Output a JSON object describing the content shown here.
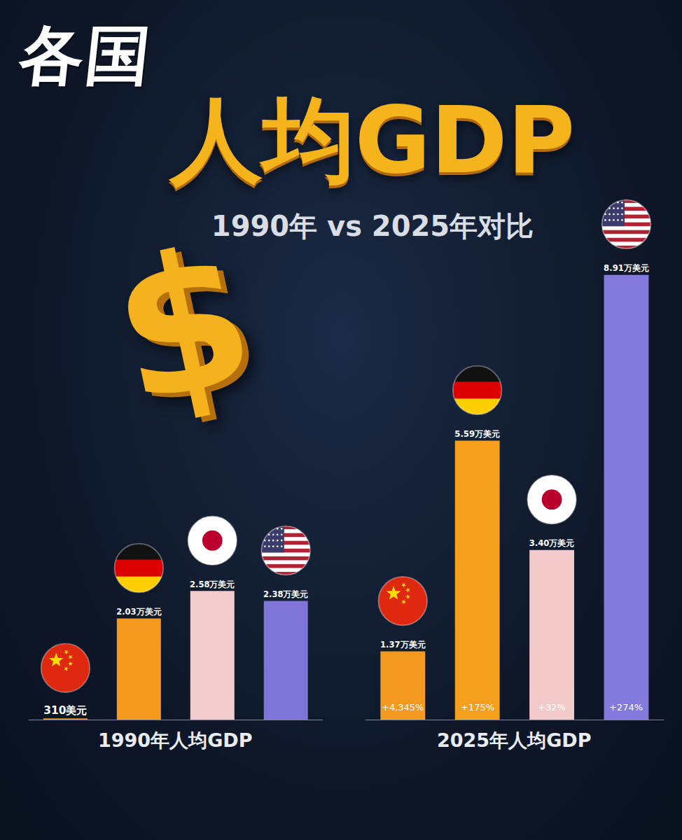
{
  "header": {
    "title_small": "各国",
    "title": "人均GDP",
    "subtitle": "1990年 vs 2025年对比",
    "icon": "$"
  },
  "chart_data": [
    {
      "type": "bar",
      "xlabel": "1990年人均GDP",
      "categories": [
        null,
        null,
        null,
        null
      ],
      "values": [
        310,
        20300,
        25800,
        23800
      ],
      "value_labels": [
        "310美元",
        "2.03万美元",
        "2.58万美元",
        "2.38万美元"
      ],
      "colors": [
        "#f28c1e",
        "#f39a1f",
        "#f2cccc",
        "#7f75d8"
      ],
      "ylim": [
        0,
        89100
      ],
      "grid": false,
      "tick_labels": false,
      "data_labels": true
    },
    {
      "type": "bar",
      "xlabel": "2025年人均GDP",
      "categories": [
        null,
        null,
        null,
        null
      ],
      "values": [
        13700,
        55900,
        34000,
        89100
      ],
      "value_labels": [
        "1.37万美元",
        "5.59万美元",
        "3.40万美元",
        "8.91万美元"
      ],
      "annotations": [
        "+4,345%",
        "+175%",
        "+32%",
        "+274%"
      ],
      "colors": [
        "#f49a20",
        "#f5a01d",
        "#f3caca",
        "#8479dc"
      ],
      "ylim": [
        0,
        89100
      ],
      "grid": false,
      "tick_labels": false,
      "data_labels": true
    }
  ]
}
